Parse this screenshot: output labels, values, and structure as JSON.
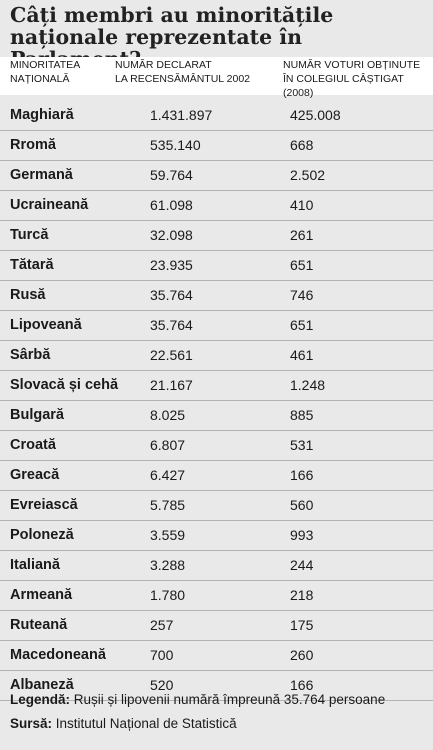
{
  "title": "Câți membri au minoritățile naționale reprezentate în Parlament?",
  "headers": {
    "col1_line1": "MINORITATEA",
    "col1_line2": "NAȚIONALĂ",
    "col2_line1": "NUMĂR DECLARAT",
    "col2_line2": "LA RECENSĂMÂNTUL 2002",
    "col3_line1": "NUMĂR VOTURI OBȚINUTE",
    "col3_line2": "ÎN COLEGIUL CÂȘTIGAT (2008)"
  },
  "rows": [
    {
      "minority": "Maghiară",
      "declared": "1.431.897",
      "votes": "425.008"
    },
    {
      "minority": "Rromă",
      "declared": "535.140",
      "votes": "668"
    },
    {
      "minority": "Germană",
      "declared": "59.764",
      "votes": "2.502"
    },
    {
      "minority": "Ucraineană",
      "declared": "61.098",
      "votes": "410"
    },
    {
      "minority": "Turcă",
      "declared": "32.098",
      "votes": "261"
    },
    {
      "minority": "Tătară",
      "declared": "23.935",
      "votes": "651"
    },
    {
      "minority": "Rusă",
      "declared": "35.764",
      "votes": "746"
    },
    {
      "minority": "Lipoveană",
      "declared": "35.764",
      "votes": "651"
    },
    {
      "minority": "Sârbă",
      "declared": "22.561",
      "votes": "461"
    },
    {
      "minority": "Slovacă și cehă",
      "declared": "21.167",
      "votes": "1.248"
    },
    {
      "minority": "Bulgară",
      "declared": "8.025",
      "votes": "885"
    },
    {
      "minority": "Croată",
      "declared": "6.807",
      "votes": "531"
    },
    {
      "minority": "Greacă",
      "declared": "6.427",
      "votes": "166"
    },
    {
      "minority": "Evreiască",
      "declared": "5.785",
      "votes": "560"
    },
    {
      "minority": "Poloneză",
      "declared": "3.559",
      "votes": "993"
    },
    {
      "minority": "Italiană",
      "declared": "3.288",
      "votes": "244"
    },
    {
      "minority": "Armeană",
      "declared": "1.780",
      "votes": "218"
    },
    {
      "minority": "Ruteană",
      "declared": "257",
      "votes": "175"
    },
    {
      "minority": "Macedoneană",
      "declared": "700",
      "votes": "260"
    },
    {
      "minority": "Albaneză",
      "declared": "520",
      "votes": "166"
    }
  ],
  "legend": {
    "label": "Legendă:",
    "text": " Rușii și lipovenii numără împreună 35.764 persoane"
  },
  "source": {
    "label": "Sursă:",
    "text": " Institutul Național de Statistică"
  }
}
